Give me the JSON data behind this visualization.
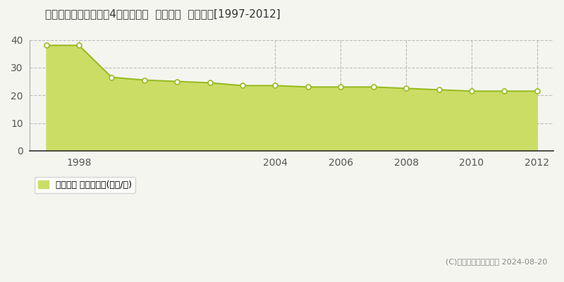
{
  "title": "愛知県瀬戸市はぎの台4丁目１７番  地価公示  地価推移[1997-2012]",
  "years": [
    1997,
    1998,
    1999,
    2000,
    2001,
    2002,
    2003,
    2004,
    2005,
    2006,
    2007,
    2008,
    2009,
    2010,
    2011,
    2012
  ],
  "values": [
    38.0,
    38.0,
    26.5,
    25.5,
    25.0,
    24.5,
    23.5,
    23.5,
    23.0,
    23.0,
    23.0,
    22.5,
    22.0,
    21.5,
    21.5,
    21.5
  ],
  "line_color": "#99bb22",
  "fill_color": "#ccdd66",
  "marker_color": "#ffffff",
  "marker_edge_color": "#99bb22",
  "background_color": "#f5f5f0",
  "grid_color": "#bbbbbb",
  "ylim": [
    0,
    40
  ],
  "yticks": [
    0,
    10,
    20,
    30,
    40
  ],
  "xtick_positions": [
    1998,
    2004,
    2006,
    2008,
    2010,
    2012
  ],
  "xtick_labels": [
    "1998",
    "2004",
    "2006",
    "2008",
    "2010",
    "2012"
  ],
  "xlim": [
    1996.5,
    2012.5
  ],
  "legend_label": "地価公示 平均崪単価(万円/崪)",
  "copyright_text": "(C)土地価格ドットコム 2024-08-20"
}
